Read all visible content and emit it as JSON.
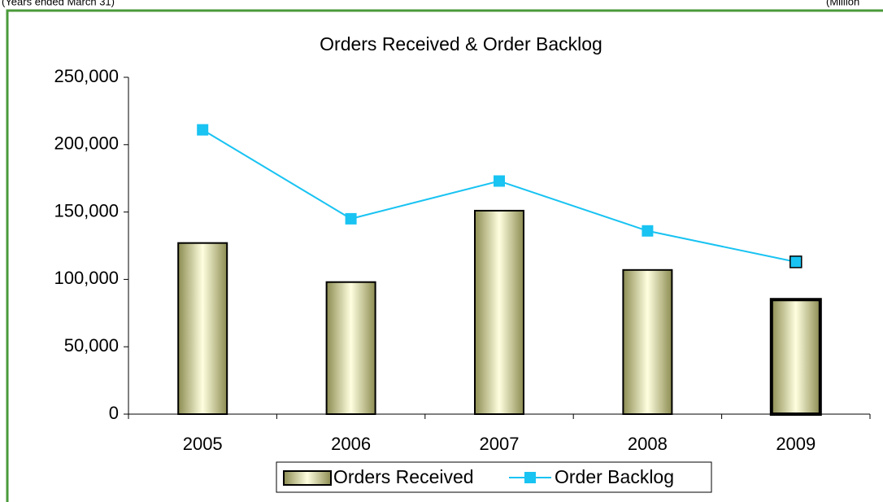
{
  "chart_data": {
    "type": "combo",
    "title": "Orders Received & Order Backlog",
    "annotations": [
      "(Years ended March 31)",
      "(Million"
    ],
    "categories": [
      "2005",
      "2006",
      "2007",
      "2008",
      "2009"
    ],
    "series": [
      {
        "name": "Orders Received",
        "type": "bar",
        "color": "#d9d9a6",
        "values": [
          127000,
          98000,
          151000,
          107000,
          85000
        ]
      },
      {
        "name": "Order Backlog",
        "type": "line",
        "color": "#19c3f2",
        "values": [
          211000,
          145000,
          173000,
          136000,
          113000
        ]
      }
    ],
    "ylim": [
      0,
      250000
    ],
    "yticks": [
      0,
      {
        "value": 50000,
        "label": "50,000"
      },
      {
        "value": 100000,
        "label": "100,000"
      },
      {
        "value": 150000,
        "label": "150,000"
      },
      {
        "value": 200000,
        "label": "200,000"
      },
      {
        "value": 250000,
        "label": "250,000"
      }
    ],
    "legend": "bottom"
  }
}
